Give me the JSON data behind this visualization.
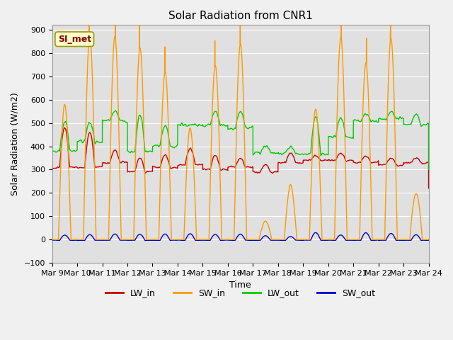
{
  "title": "Solar Radiation from CNR1",
  "xlabel": "Time",
  "ylabel": "Solar Radiation (W/m2)",
  "ylim": [
    -100,
    920
  ],
  "yticks": [
    -100,
    0,
    100,
    200,
    300,
    400,
    500,
    600,
    700,
    800,
    900
  ],
  "x_tick_labels": [
    "Mar 9",
    "Mar 10",
    "Mar 11",
    "Mar 12",
    "Mar 13",
    "Mar 14",
    "Mar 15",
    "Mar 16",
    "Mar 17",
    "Mar 18",
    "Mar 19",
    "Mar 20",
    "Mar 21",
    "Mar 22",
    "Mar 23",
    "Mar 24"
  ],
  "line_colors": {
    "LW_in": "#cc0000",
    "SW_in": "#ff9900",
    "LW_out": "#00cc00",
    "SW_out": "#0000cc"
  },
  "line_widths": {
    "LW_in": 1.0,
    "SW_in": 1.0,
    "LW_out": 1.0,
    "SW_out": 1.0
  },
  "annotation_text": "SI_met",
  "annotation_color": "#880000",
  "annotation_bg": "#ffffcc",
  "bg_color": "#e0e0e0",
  "fig_bg_color": "#f0f0f0",
  "grid_color": "#ffffff",
  "title_fontsize": 11,
  "axis_fontsize": 9,
  "tick_fontsize": 8,
  "legend_fontsize": 9,
  "days": 15,
  "day_start": 9,
  "sw_in_peaks": [
    580,
    870,
    870,
    820,
    720,
    480,
    750,
    840,
    80,
    230,
    560,
    870,
    760,
    860,
    200
  ],
  "lw_in_base": [
    310,
    310,
    330,
    290,
    310,
    320,
    300,
    310,
    290,
    330,
    340,
    340,
    330,
    320,
    330
  ],
  "lw_in_peak_add": [
    170,
    150,
    50,
    60,
    50,
    70,
    60,
    40,
    30,
    40,
    20,
    30,
    30,
    30,
    20
  ],
  "lw_out_base": [
    380,
    420,
    510,
    380,
    400,
    490,
    490,
    480,
    370,
    370,
    370,
    440,
    510,
    520,
    490
  ],
  "lw_out_peak_add": [
    120,
    80,
    40,
    160,
    90,
    0,
    60,
    70,
    30,
    30,
    160,
    80,
    30,
    30,
    50
  ]
}
